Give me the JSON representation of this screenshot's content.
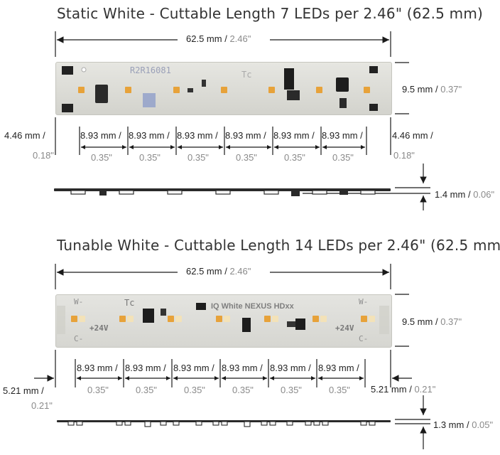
{
  "static_section": {
    "title": "Static White - Cuttable Length 7 LEDs per 2.46\" (62.5 mm)",
    "overall_length": {
      "mm": "62.5 mm",
      "sep": "/",
      "inch": "2.46\""
    },
    "width": {
      "mm": "9.5 mm",
      "sep": "/",
      "inch": "0.37\""
    },
    "edge_left": {
      "mm": "4.46 mm /",
      "inch": "0.18\""
    },
    "edge_right": {
      "mm": "4.46 mm /",
      "inch": "0.18\""
    },
    "pitch_mm": "8.93 mm /",
    "pitch_in": "0.35\"",
    "thickness": {
      "mm": "1.4 mm",
      "sep": "/",
      "inch": "0.06\""
    },
    "pcb_label": "R2R16081",
    "tc_label": "Tc"
  },
  "tunable_section": {
    "title": "Tunable White - Cuttable Length 14 LEDs per 2.46\" (62.5 mm)",
    "overall_length": {
      "mm": "62.5 mm",
      "sep": "/",
      "inch": "2.46\""
    },
    "width": {
      "mm": "9.5 mm",
      "sep": "/",
      "inch": "0.37\""
    },
    "edge_left": {
      "mm": "5.21 mm /",
      "inch": "0.21\""
    },
    "edge_right": {
      "mm": "5.21 mm",
      "sep": "/",
      "inch": "0.21\""
    },
    "pitch_mm": "8.93 mm /",
    "pitch_in": "0.35\"",
    "thickness": {
      "mm": "1.3 mm",
      "sep": "/",
      "inch": "0.05\""
    },
    "pcb_brand": "IQ White NEXUS HDxx",
    "pad_w": "W-",
    "pad_c": "C-",
    "voltage": "+24V",
    "tc_label": "Tc"
  },
  "colors": {
    "pcb": "#dcdcd6",
    "led_warm": "#e7a23a",
    "led_cool": "#f3e2b8",
    "inch_gray": "#8a8a8a"
  }
}
